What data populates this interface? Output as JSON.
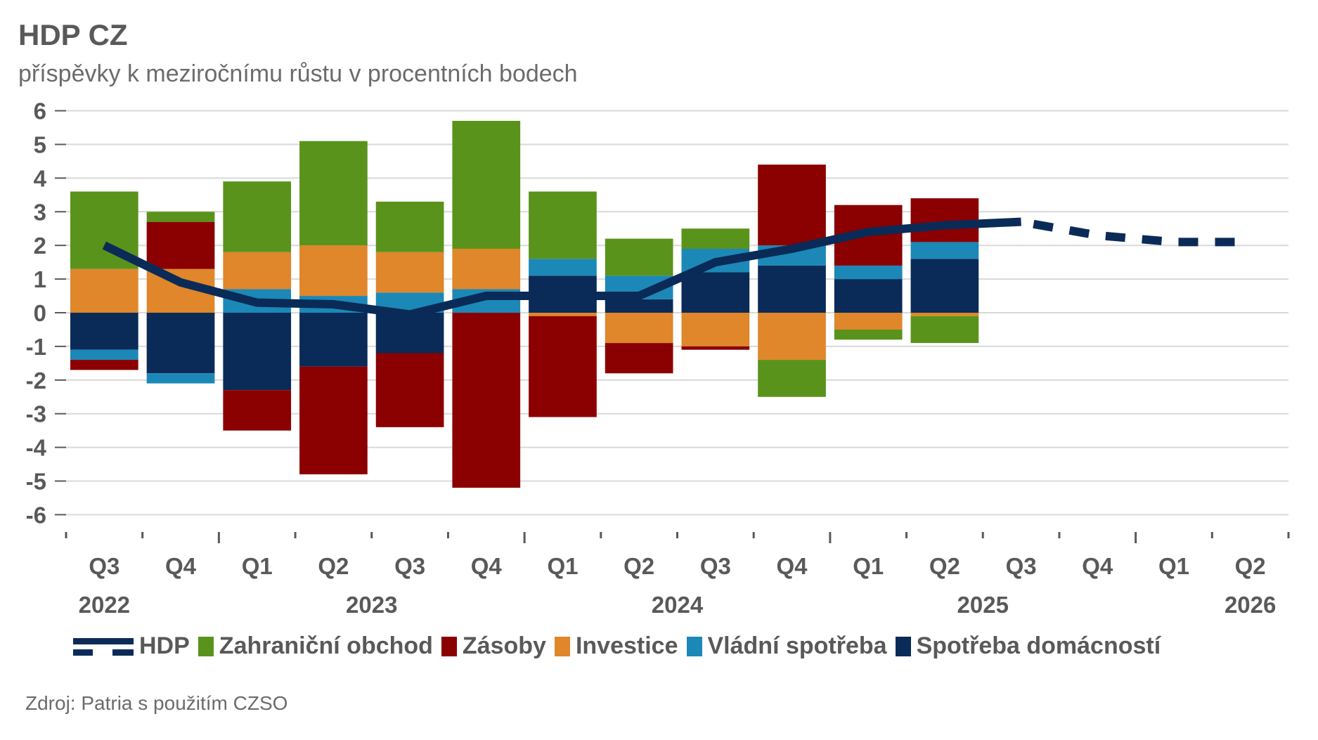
{
  "header": {
    "title": "HDP CZ",
    "subtitle": "příspěvky k meziročnímu růstu v procentních bodech"
  },
  "source": "Zdroj: Patria s použitím CZSO",
  "chart_data": {
    "type": "bar",
    "stacked": true,
    "title": "HDP CZ",
    "subtitle": "příspěvky k meziročnímu růstu v procentních bodech",
    "xlabel": "",
    "ylabel": "",
    "ylim": [
      -6,
      6
    ],
    "yticks": [
      6,
      5,
      4,
      3,
      2,
      1,
      0,
      -1,
      -2,
      -3,
      -4,
      -5,
      -6
    ],
    "grid": true,
    "legend_position": "bottom",
    "categories": [
      "Q3",
      "Q4",
      "Q1",
      "Q2",
      "Q3",
      "Q4",
      "Q1",
      "Q2",
      "Q3",
      "Q4",
      "Q1",
      "Q2",
      "Q3",
      "Q4",
      "Q1",
      "Q2"
    ],
    "year_labels": [
      {
        "label": "2022",
        "index": 0
      },
      {
        "label": "2023",
        "index": 3.5
      },
      {
        "label": "2024",
        "index": 7.5
      },
      {
        "label": "2025",
        "index": 11.5
      },
      {
        "label": "2026",
        "index": 15
      }
    ],
    "series": [
      {
        "name": "Spotřeba domácností",
        "color": "#0a2b57",
        "values": [
          -1.1,
          -1.8,
          -2.3,
          -1.6,
          -1.2,
          0.0,
          1.1,
          0.4,
          1.2,
          1.4,
          1.0,
          1.6,
          null,
          null,
          null,
          null
        ]
      },
      {
        "name": "Vládní spotřeba",
        "color": "#1c88b7",
        "values": [
          -0.3,
          -0.3,
          0.7,
          0.5,
          0.6,
          0.7,
          0.5,
          0.7,
          0.7,
          0.6,
          0.4,
          0.5,
          null,
          null,
          null,
          null
        ]
      },
      {
        "name": "Investice",
        "color": "#e0862b",
        "values": [
          1.3,
          1.3,
          1.1,
          1.5,
          1.2,
          1.2,
          -0.1,
          -0.9,
          -1.0,
          -1.4,
          -0.5,
          -0.1,
          null,
          null,
          null,
          null
        ]
      },
      {
        "name": "Zásoby",
        "color": "#8b0000",
        "values": [
          -0.3,
          1.4,
          -1.2,
          -3.2,
          -2.2,
          -5.2,
          -3.0,
          -0.9,
          -0.1,
          2.4,
          1.8,
          1.3,
          null,
          null,
          null,
          null
        ]
      },
      {
        "name": "Zahraniční obchod",
        "color": "#5a931b",
        "values": [
          2.3,
          0.3,
          2.1,
          3.1,
          1.5,
          3.8,
          2.0,
          1.1,
          0.6,
          -1.1,
          -0.3,
          -0.8,
          null,
          null,
          null,
          null
        ]
      }
    ],
    "line": {
      "name": "HDP",
      "color": "#0a2b57",
      "values": [
        2.0,
        0.9,
        0.3,
        0.25,
        -0.05,
        0.5,
        0.5,
        0.5,
        1.5,
        1.9,
        2.4,
        2.6,
        2.7,
        2.3,
        2.1,
        2.1
      ],
      "actual_until_index": 12,
      "forecast_from_index": 12
    }
  },
  "legend": [
    {
      "label": "HDP",
      "type": "line",
      "color": "#0a2b57"
    },
    {
      "label": "Zahraniční obchod",
      "type": "box",
      "color": "#5a931b"
    },
    {
      "label": "Zásoby",
      "type": "box",
      "color": "#8b0000"
    },
    {
      "label": "Investice",
      "type": "box",
      "color": "#e0862b"
    },
    {
      "label": "Vládní spotřeba",
      "type": "box",
      "color": "#1c88b7"
    },
    {
      "label": "Spotřeba domácností",
      "type": "box",
      "color": "#0a2b57"
    }
  ]
}
